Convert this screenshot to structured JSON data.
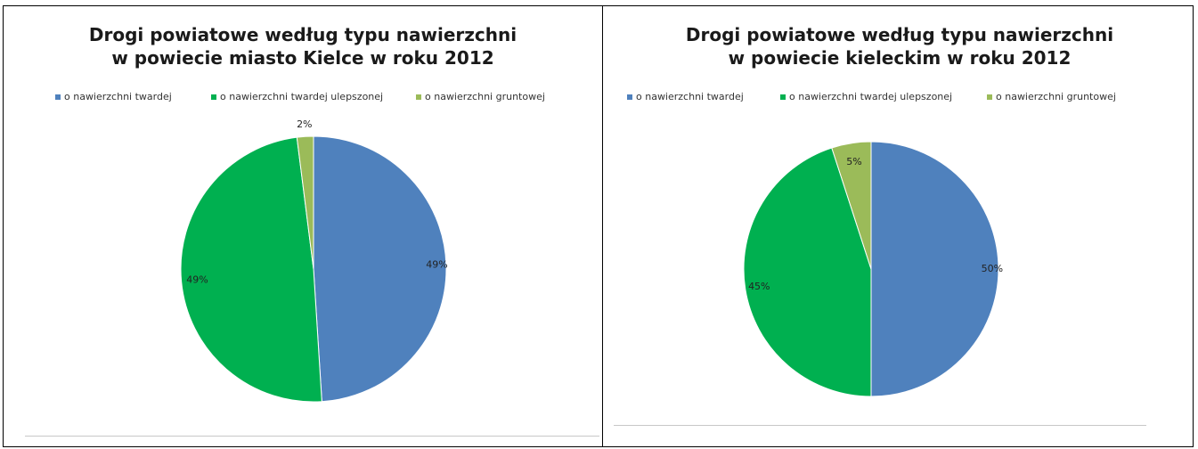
{
  "charts": [
    {
      "title_line1": "Drogi powiatowe według typu nawierzchni",
      "title_line2": "w powiecie miasto Kielce w roku 2012",
      "legend": [
        "o nawierzchni twardej",
        "o nawierzchni twardej ulepszonej",
        "o nawierzchni gruntowej"
      ]
    },
    {
      "title_line1": "Drogi powiatowe według typu nawierzchni",
      "title_line2": "w powiecie kieleckim w roku 2012",
      "legend": [
        "o nawierzchni twardej",
        "o nawierzchni twardej ulepszonej",
        "o nawierzchni gruntowej"
      ]
    }
  ],
  "colors": {
    "twarda": "#4f81bd",
    "twarda_ulepszona": "#00b050",
    "gruntowa": "#9bbb59"
  },
  "chart_data": [
    {
      "type": "pie",
      "title": "Drogi powiatowe według typu nawierzchni w powiecie miasto Kielce w roku 2012",
      "categories": [
        "o nawierzchni twardej",
        "o nawierzchni twardej ulepszonej",
        "o nawierzchni gruntowej"
      ],
      "values": [
        49,
        49,
        2
      ],
      "labels": [
        "49%",
        "49%",
        "2%"
      ],
      "legend_position": "top"
    },
    {
      "type": "pie",
      "title": "Drogi powiatowe według typu nawierzchni w powiecie kieleckim w roku 2012",
      "categories": [
        "o nawierzchni twardej",
        "o nawierzchni twardej ulepszonej",
        "o nawierzchni gruntowej"
      ],
      "values": [
        50,
        45,
        5
      ],
      "labels": [
        "50%",
        "45%",
        "5%"
      ],
      "legend_position": "top"
    }
  ]
}
